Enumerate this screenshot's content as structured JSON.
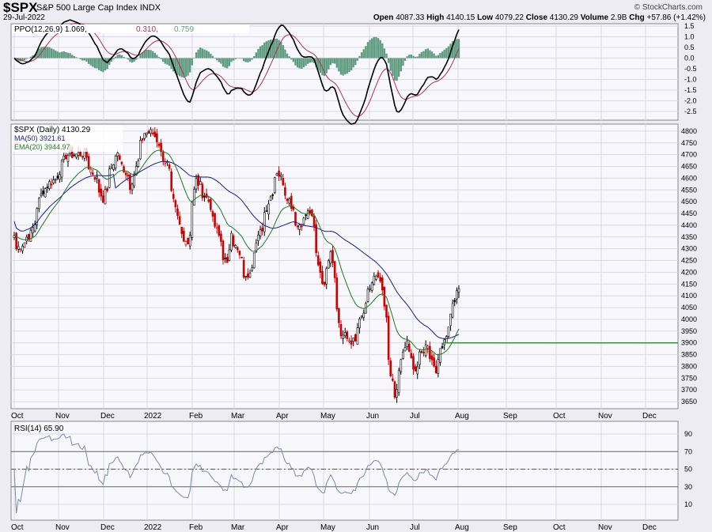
{
  "header": {
    "symbol": "$SPX",
    "description": "S&P 500 Large Cap Index",
    "exchange": "INDX",
    "date": "29-Jul-2022",
    "watermark": "© StockCharts.com",
    "open_label": "Open",
    "open": "4087.33",
    "high_label": "High",
    "high": "4140.15",
    "low_label": "Low",
    "low": "4079.22",
    "close_label": "Close",
    "close": "4130.29",
    "volume_label": "Volume",
    "volume": "2.9B",
    "chg_label": "Chg",
    "chg": "+57.86 (+1.42%)"
  },
  "colors": {
    "up": "#000000",
    "down": "#cc0000",
    "ma50": "#1a1a8c",
    "ema20": "#1f7a1f",
    "ppo_hist": "#5f9c82",
    "rsi": "#7a8aa8",
    "support": "#2a9a2a",
    "grid": "#d8d8e6",
    "panel": "#f7f7fc"
  },
  "chart_data": [
    {
      "type": "line",
      "title": "PPO(12,26,9)",
      "legend": {
        "name": "PPO(12,26,9)",
        "ppo": "1.069",
        "signal": "0.310",
        "hist": "0.759"
      },
      "y_ticks": [
        "1.5",
        "1.0",
        "0.5",
        "0.0",
        "-0.5",
        "-1.0",
        "-1.5",
        "-2.0",
        "-2.5"
      ],
      "ylim": [
        -2.7,
        1.7
      ]
    },
    {
      "type": "candlestick",
      "title": "$SPX (Daily)",
      "legend": {
        "main": "$SPX (Daily) 4130.29",
        "ma": "MA(50) 3921.61",
        "ema": "EMA(20) 3944.97"
      },
      "ylim": [
        3620,
        4830
      ],
      "y_ticks": [
        "4800",
        "4750",
        "4700",
        "4650",
        "4600",
        "4550",
        "4500",
        "4450",
        "4400",
        "4350",
        "4300",
        "4250",
        "4200",
        "4150",
        "4100",
        "4050",
        "4000",
        "3950",
        "3900",
        "3850",
        "3800",
        "3750",
        "3700",
        "3650"
      ],
      "x_ticks": [
        "Oct",
        "Nov",
        "Dec",
        "2022",
        "Feb",
        "Mar",
        "Apr",
        "May",
        "Jun",
        "Jul",
        "Aug",
        "Sep",
        "Oct",
        "Nov",
        "Dec"
      ],
      "support_level": 3900,
      "keypoints": [
        [
          "2021-10-01",
          4357
        ],
        [
          "2021-10-04",
          4300
        ],
        [
          "2021-10-13",
          4363
        ],
        [
          "2021-10-21",
          4550
        ],
        [
          "2021-11-01",
          4613
        ],
        [
          "2021-11-05",
          4697
        ],
        [
          "2021-11-18",
          4704
        ],
        [
          "2021-11-26",
          4595
        ],
        [
          "2021-12-01",
          4513
        ],
        [
          "2021-12-10",
          4712
        ],
        [
          "2021-12-20",
          4568
        ],
        [
          "2021-12-29",
          4793
        ],
        [
          "2022-01-04",
          4793
        ],
        [
          "2022-01-13",
          4659
        ],
        [
          "2022-01-21",
          4398
        ],
        [
          "2022-01-27",
          4326
        ],
        [
          "2022-02-02",
          4589
        ],
        [
          "2022-02-10",
          4504
        ],
        [
          "2022-02-23",
          4225
        ],
        [
          "2022-02-25",
          4385
        ],
        [
          "2022-03-08",
          4170
        ],
        [
          "2022-03-29",
          4631
        ],
        [
          "2022-04-05",
          4525
        ],
        [
          "2022-04-12",
          4397
        ],
        [
          "2022-04-20",
          4459
        ],
        [
          "2022-04-29",
          4132
        ],
        [
          "2022-05-04",
          4300
        ],
        [
          "2022-05-11",
          3935
        ],
        [
          "2022-05-20",
          3901
        ],
        [
          "2022-06-02",
          4176
        ],
        [
          "2022-06-07",
          4160
        ],
        [
          "2022-06-16",
          3666
        ],
        [
          "2022-06-24",
          3911
        ],
        [
          "2022-06-30",
          3785
        ],
        [
          "2022-07-08",
          3899
        ],
        [
          "2022-07-14",
          3790
        ],
        [
          "2022-07-22",
          3961
        ],
        [
          "2022-07-29",
          4130
        ]
      ]
    },
    {
      "type": "line",
      "title": "RSI(14)",
      "legend": "RSI(14) 65.90",
      "y_ticks": [
        "90",
        "70",
        "50",
        "30",
        "10"
      ],
      "ylim": [
        0,
        100
      ],
      "overbought": 70,
      "oversold": 30
    }
  ]
}
